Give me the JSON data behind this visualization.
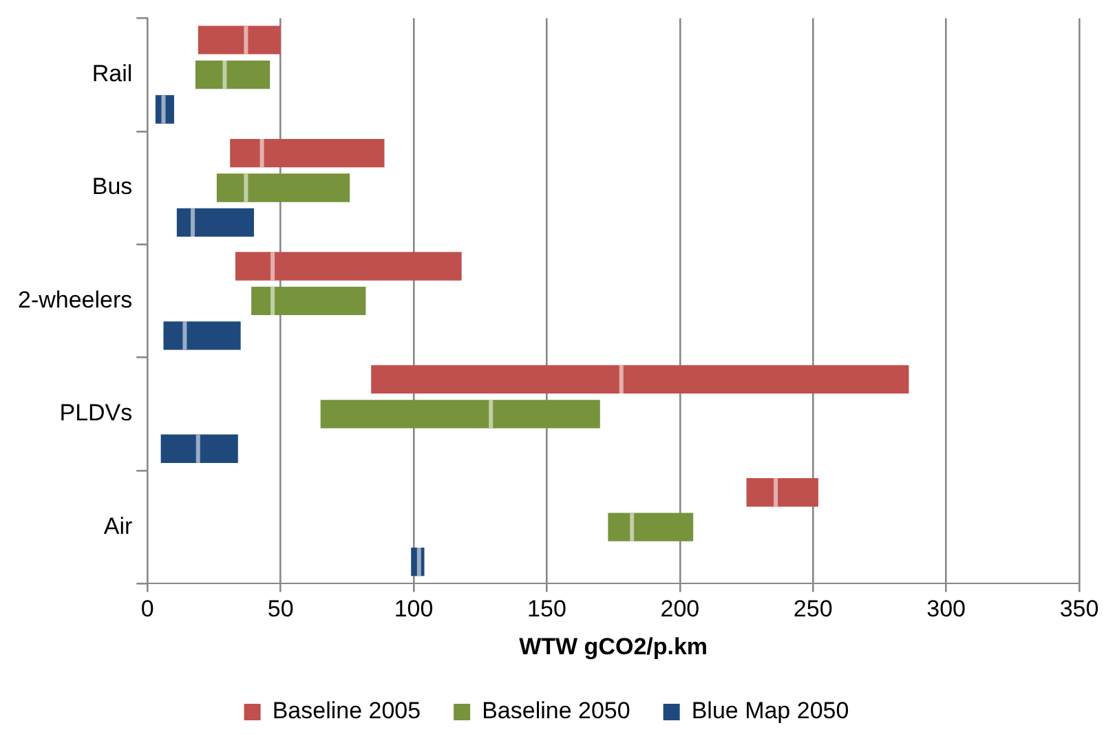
{
  "chart_data": {
    "type": "box",
    "orientation": "horizontal",
    "xlabel": "WTW gCO2/p.km",
    "categories": [
      "Rail",
      "Bus",
      "2-wheelers",
      "PLDVs",
      "Air"
    ],
    "series": [
      {
        "name": "Baseline 2005",
        "color": "#c0504d",
        "boxes": [
          {
            "low": 19,
            "q1": 19,
            "median": 37,
            "q3": 50,
            "high": 50
          },
          {
            "low": 31,
            "q1": 31,
            "median": 43,
            "q3": 89,
            "high": 89
          },
          {
            "low": 33,
            "q1": 33,
            "median": 47,
            "q3": 118,
            "high": 118
          },
          {
            "low": 84,
            "q1": 84,
            "median": 178,
            "q3": 286,
            "high": 286
          },
          {
            "low": 225,
            "q1": 225,
            "median": 236,
            "q3": 252,
            "high": 252
          }
        ]
      },
      {
        "name": "Baseline 2050",
        "color": "#77933c",
        "boxes": [
          {
            "low": 18,
            "q1": 18,
            "median": 29,
            "q3": 46,
            "high": 46
          },
          {
            "low": 26,
            "q1": 26,
            "median": 37,
            "q3": 76,
            "high": 76
          },
          {
            "low": 39,
            "q1": 39,
            "median": 47,
            "q3": 82,
            "high": 82
          },
          {
            "low": 65,
            "q1": 65,
            "median": 129,
            "q3": 170,
            "high": 170
          },
          {
            "low": 173,
            "q1": 173,
            "median": 182,
            "q3": 205,
            "high": 205
          }
        ]
      },
      {
        "name": "Blue Map 2050",
        "color": "#1f497d",
        "boxes": [
          {
            "low": 3,
            "q1": 3,
            "median": 6,
            "q3": 10,
            "high": 10
          },
          {
            "low": 11,
            "q1": 11,
            "median": 17,
            "q3": 40,
            "high": 40
          },
          {
            "low": 6,
            "q1": 6,
            "median": 14,
            "q3": 35,
            "high": 35
          },
          {
            "low": 5,
            "q1": 5,
            "median": 19,
            "q3": 34,
            "high": 34
          },
          {
            "low": 99,
            "q1": 99,
            "median": 102,
            "q3": 104,
            "high": 104
          }
        ]
      }
    ],
    "xlim": [
      0,
      350
    ],
    "xticks": [
      0,
      50,
      100,
      150,
      200,
      250,
      300,
      350
    ],
    "grid": "x",
    "legend": "bottom"
  }
}
